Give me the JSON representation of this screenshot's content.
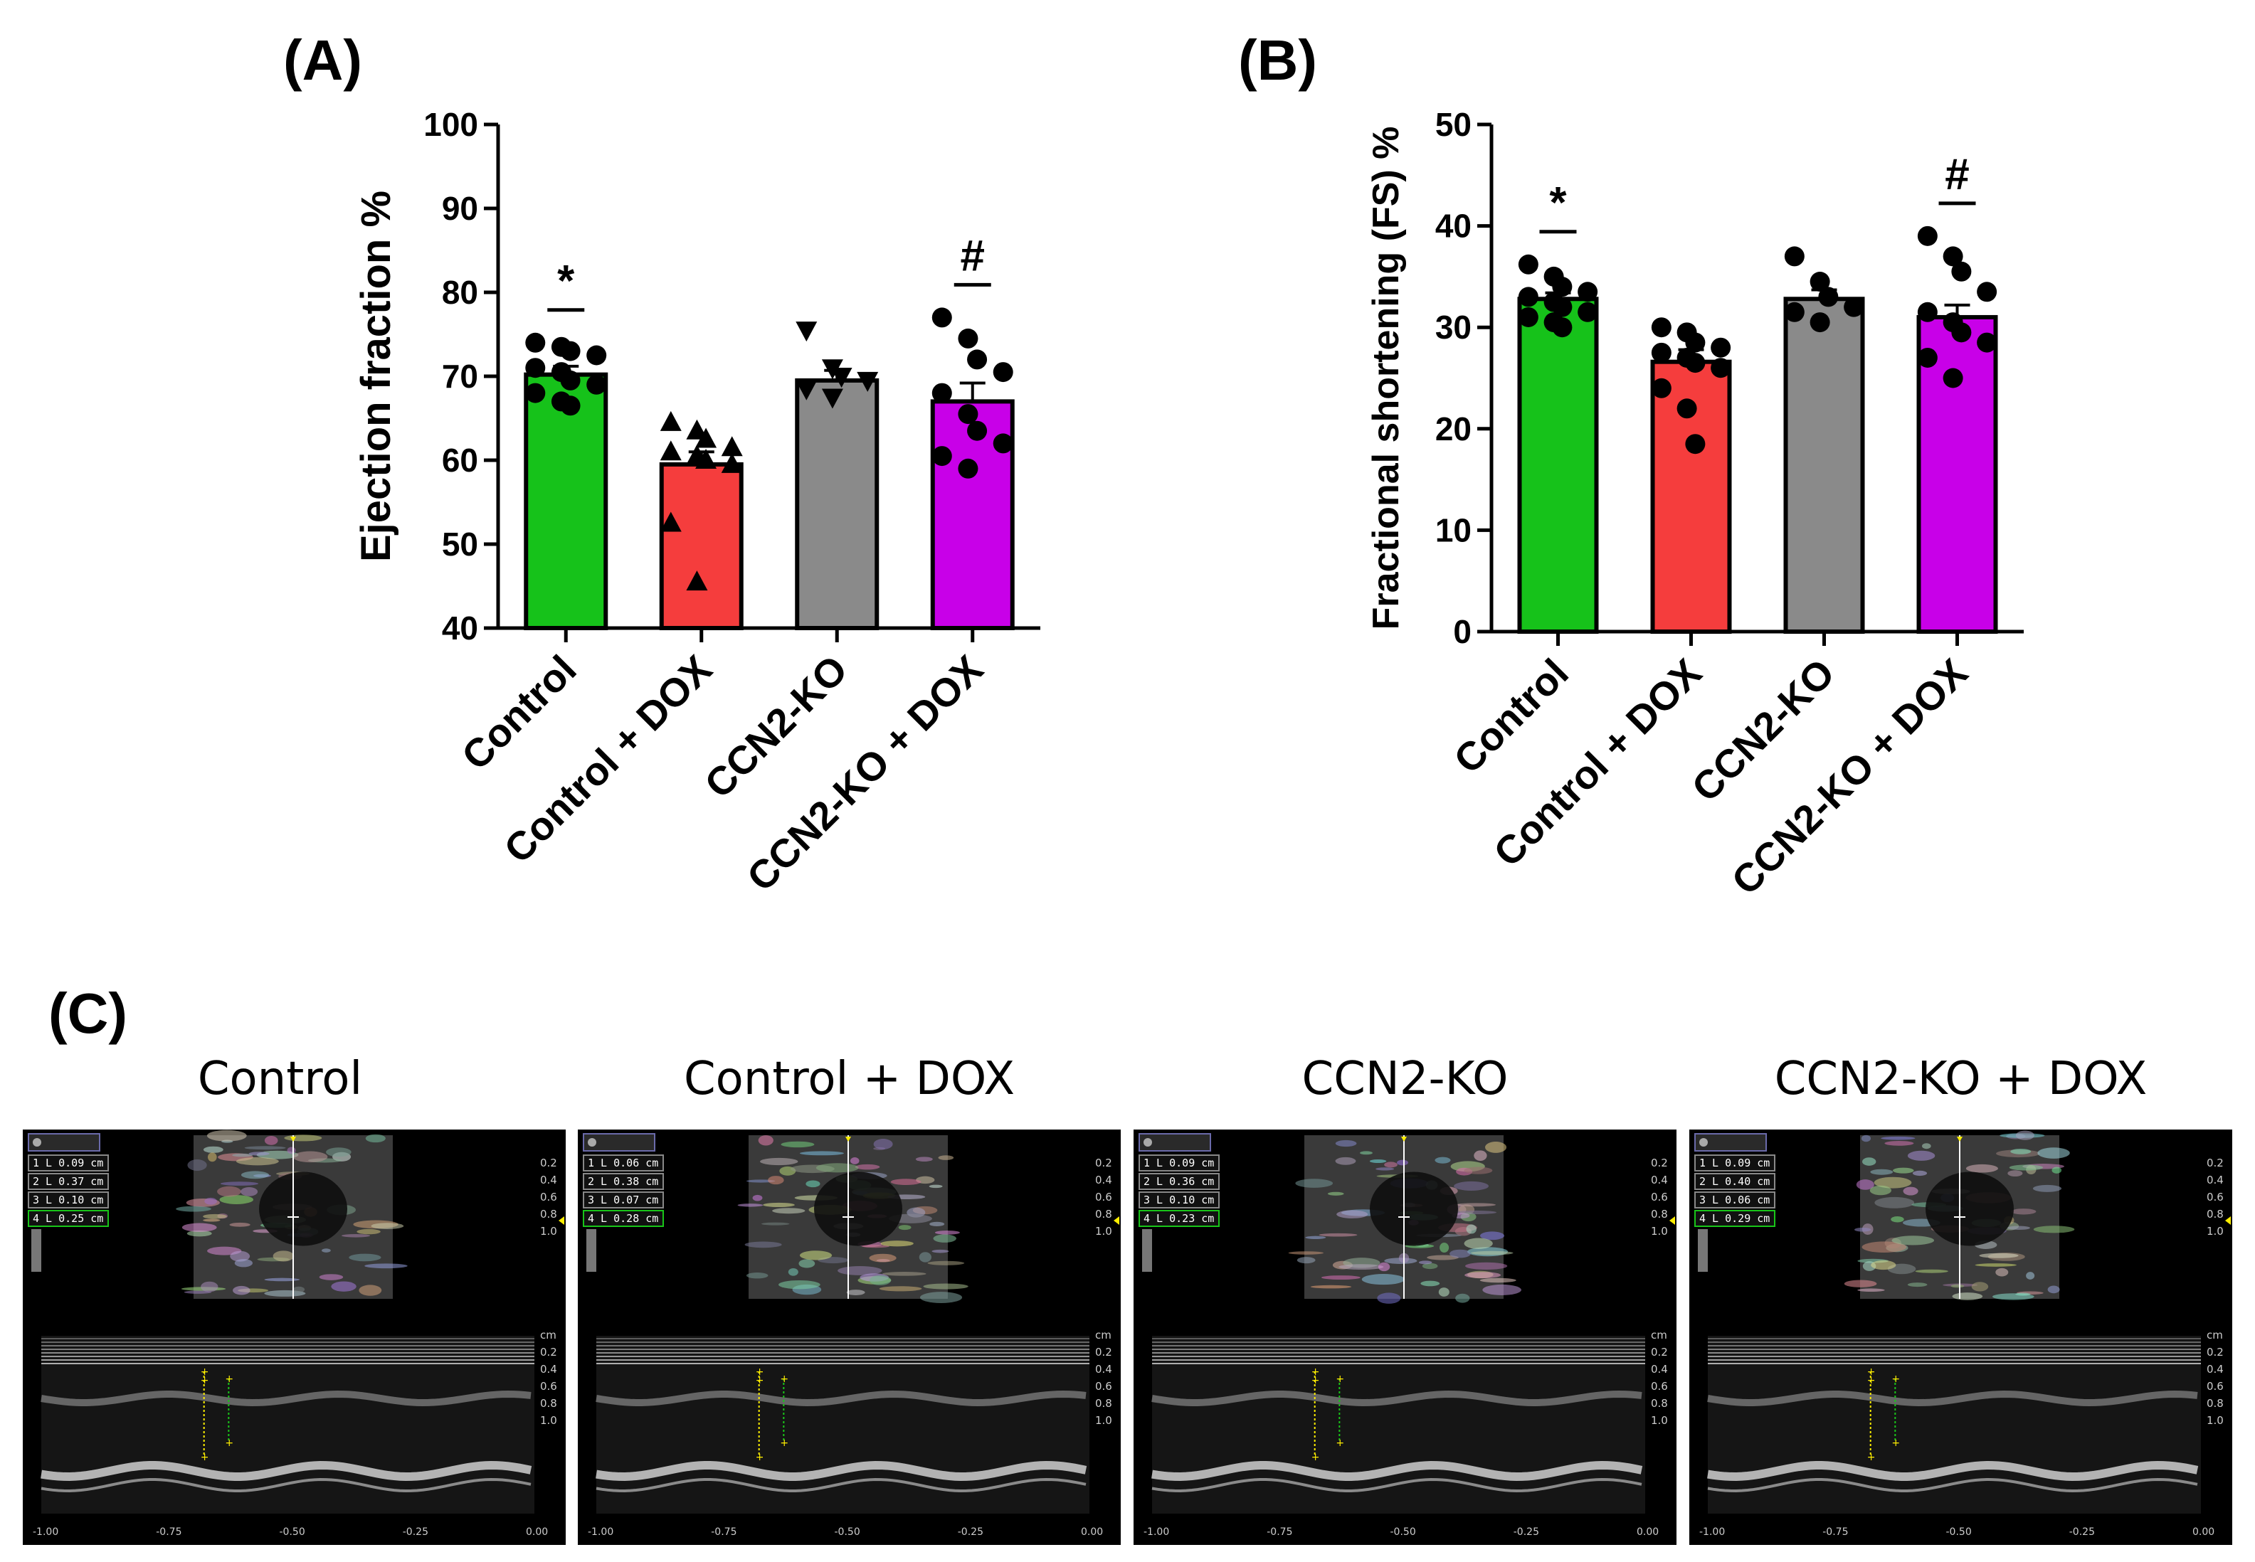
{
  "panel_labels": {
    "a": "(A)",
    "b": "(B)",
    "c": "(C)"
  },
  "chart_data": [
    {
      "type": "bar",
      "title": "(A)",
      "ylabel": "Ejection fraction %",
      "ylim": [
        40,
        100
      ],
      "yticks": [
        40,
        50,
        60,
        70,
        80,
        90,
        100
      ],
      "categories": [
        "Control",
        "Control + DOX",
        "CCN2-KO",
        "CCN2-KO + DOX"
      ],
      "values": [
        70.2,
        59.5,
        69.5,
        67.0
      ],
      "sem": [
        1.0,
        1.5,
        1.2,
        2.2
      ],
      "colors": [
        "#16c21a",
        "#f53d3d",
        "#8a8a8a",
        "#c800e8"
      ],
      "markers": [
        "circle",
        "triangle",
        "triangle-down",
        "circle"
      ],
      "points": [
        [
          74,
          73.5,
          73,
          72.5,
          71,
          70.5,
          69.5,
          69,
          68,
          67,
          66.5
        ],
        [
          64.5,
          63.5,
          62.5,
          61.5,
          61,
          60.5,
          60,
          59.5,
          52.5,
          45.5
        ],
        [
          75.5,
          71,
          70,
          69.5,
          68.5,
          67.5
        ],
        [
          77,
          74.5,
          72,
          70.5,
          68,
          65.5,
          63.5,
          62,
          60.5,
          59
        ]
      ],
      "annotations": [
        "*",
        "",
        "",
        "#"
      ]
    },
    {
      "type": "bar",
      "title": "(B)",
      "ylabel": "Fractional shortening (FS) %",
      "ylim": [
        0,
        50
      ],
      "yticks": [
        0,
        10,
        20,
        30,
        40,
        50
      ],
      "categories": [
        "Control",
        "Control + DOX",
        "CCN2-KO",
        "CCN2-KO + DOX"
      ],
      "values": [
        32.8,
        26.6,
        32.8,
        31.0
      ],
      "sem": [
        0.6,
        1.2,
        0.9,
        1.2
      ],
      "colors": [
        "#16c21a",
        "#f53d3d",
        "#8a8a8a",
        "#c800e8"
      ],
      "markers": [
        "circle",
        "circle",
        "circle",
        "circle"
      ],
      "points": [
        [
          36.2,
          35,
          34,
          33.5,
          33,
          32.5,
          32,
          31.5,
          31,
          30.5,
          30
        ],
        [
          30,
          29.5,
          28.5,
          28,
          27.5,
          27,
          26.5,
          26,
          24,
          22,
          18.5
        ],
        [
          37,
          34.5,
          33,
          32,
          31.5,
          30.5
        ],
        [
          39,
          37,
          35.5,
          33.5,
          31.5,
          30.5,
          29.5,
          28.5,
          27,
          25
        ]
      ],
      "annotations": [
        "*",
        "",
        "",
        "#"
      ]
    }
  ],
  "echo": {
    "titles": [
      "Control",
      "Control + DOX",
      "CCN2-KO",
      "CCN2-KO + DOX"
    ],
    "measurements": [
      [
        "1 L 0.09 cm",
        "2 L 0.37 cm",
        "3 L 0.10 cm",
        "4 L 0.25 cm"
      ],
      [
        "1 L 0.06 cm",
        "2 L 0.38 cm",
        "3 L 0.07 cm",
        "4 L 0.28 cm"
      ],
      [
        "1 L 0.09 cm",
        "2 L 0.36 cm",
        "3 L 0.10 cm",
        "4 L 0.23 cm"
      ],
      [
        "1 L 0.09 cm",
        "2 L 0.40 cm",
        "3 L 0.06 cm",
        "4 L 0.29 cm"
      ]
    ],
    "depth_top": [
      "0.2",
      "0.4",
      "0.6",
      "0.8",
      "1.0"
    ],
    "depth_bottom": [
      "cm",
      "0.2",
      "0.4",
      "0.6",
      "0.8",
      "1.0"
    ],
    "time_axis": [
      "-1.00",
      "-0.75",
      "-0.50",
      "-0.25",
      "0.00"
    ],
    "marker_color": "#ffee00",
    "green_color": "#19c519"
  }
}
